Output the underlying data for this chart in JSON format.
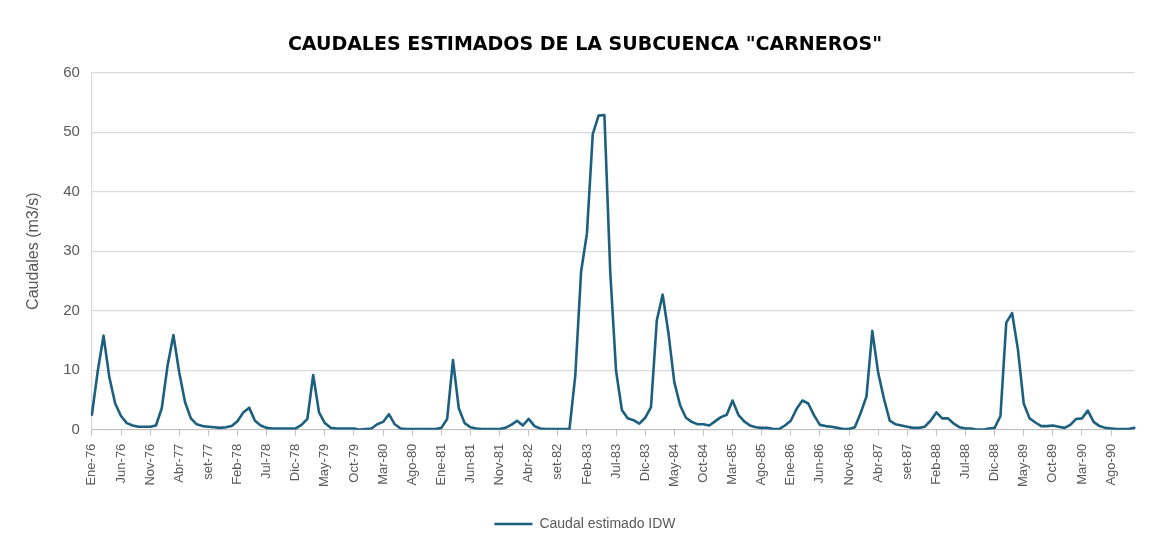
{
  "chart_data": {
    "type": "line",
    "title": "CAUDALES ESTIMADOS DE LA SUBCUENCA \"CARNEROS\"",
    "ylabel": "Caudales (m3/s)",
    "categories": [
      "Ene-76",
      null,
      null,
      null,
      null,
      "Jun-76",
      null,
      null,
      null,
      null,
      "Nov-76",
      null,
      null,
      null,
      null,
      "Abr-77",
      null,
      null,
      null,
      null,
      "set-77",
      null,
      null,
      null,
      null,
      "Feb-78",
      null,
      null,
      null,
      null,
      "Jul-78",
      null,
      null,
      null,
      null,
      "Dic-78",
      null,
      null,
      null,
      null,
      "May-79",
      null,
      null,
      null,
      null,
      "Oct-79",
      null,
      null,
      null,
      null,
      "Mar-80",
      null,
      null,
      null,
      null,
      "Ago-80",
      null,
      null,
      null,
      null,
      "Ene-81",
      null,
      null,
      null,
      null,
      "Jun-81",
      null,
      null,
      null,
      null,
      "Nov-81",
      null,
      null,
      null,
      null,
      "Abr-82",
      null,
      null,
      null,
      null,
      "set-82",
      null,
      null,
      null,
      null,
      "Feb-83",
      null,
      null,
      null,
      null,
      "Jul-83",
      null,
      null,
      null,
      null,
      "Dic-83",
      null,
      null,
      null,
      null,
      "May-84",
      null,
      null,
      null,
      null,
      "Oct-84",
      null,
      null,
      null,
      null,
      "Mar-85",
      null,
      null,
      null,
      null,
      "Ago-85",
      null,
      null,
      null,
      null,
      "Ene-86",
      null,
      null,
      null,
      null,
      "Jun-86",
      null,
      null,
      null,
      null,
      "Nov-86",
      null,
      null,
      null,
      null,
      "Abr-87",
      null,
      null,
      null,
      null,
      "set-87",
      null,
      null,
      null,
      null,
      "Feb-88",
      null,
      null,
      null,
      null,
      "Jul-88",
      null,
      null,
      null,
      null,
      "Dic-88",
      null,
      null,
      null,
      null,
      "May-89",
      null,
      null,
      null,
      null,
      "Oct-89",
      null,
      null,
      null,
      null,
      "Mar-90",
      null,
      null,
      null,
      null,
      "Ago-90",
      null,
      null,
      null,
      null
    ],
    "series": [
      {
        "name": "Caudal estimado IDW",
        "color": "#1c5f7f",
        "values": [
          2.5,
          9.8,
          15.8,
          8.8,
          4.4,
          2.3,
          1.1,
          0.7,
          0.5,
          0.5,
          0.5,
          0.7,
          3.6,
          10.8,
          15.9,
          9.6,
          4.6,
          1.9,
          0.9,
          0.6,
          0.5,
          0.4,
          0.3,
          0.4,
          0.6,
          1.4,
          2.9,
          3.7,
          1.5,
          0.7,
          0.3,
          0.2,
          0.2,
          0.2,
          0.2,
          0.2,
          0.8,
          1.8,
          9.2,
          2.9,
          1.1,
          0.3,
          0.2,
          0.2,
          0.2,
          0.2,
          0,
          0.1,
          0.2,
          0.9,
          1.3,
          2.6,
          0.9,
          0.2,
          0.1,
          0.1,
          0.1,
          0.1,
          0.1,
          0.1,
          0.3,
          1.8,
          11.7,
          3.6,
          1.1,
          0.4,
          0.2,
          0.1,
          0.1,
          0.1,
          0.1,
          0.3,
          0.8,
          1.5,
          0.7,
          1.8,
          0.6,
          0.2,
          0.1,
          0.1,
          0.1,
          0.1,
          0.1,
          9.1,
          26.6,
          33,
          49.7,
          52.8,
          52.9,
          26.6,
          9.9,
          3.3,
          1.9,
          1.6,
          1.0,
          2.0,
          3.8,
          18.4,
          22.7,
          16.2,
          8.0,
          4.1,
          2.0,
          1.3,
          0.9,
          0.9,
          0.7,
          1.4,
          2.1,
          2.5,
          4.9,
          2.5,
          1.4,
          0.7,
          0.4,
          0.3,
          0.3,
          0.1,
          0.1,
          0.7,
          1.5,
          3.5,
          4.9,
          4.4,
          2.4,
          0.8,
          0.6,
          0.5,
          0.3,
          0.1,
          0.1,
          0.4,
          2.8,
          5.6,
          16.6,
          9.6,
          5.2,
          1.5,
          0.9,
          0.7,
          0.5,
          0.3,
          0.3,
          0.5,
          1.5,
          2.9,
          1.9,
          1.9,
          1.0,
          0.4,
          0.2,
          0.2,
          0,
          0,
          0.2,
          0.3,
          2.3,
          18.0,
          19.6,
          13.5,
          4.4,
          1.9,
          1.2,
          0.6,
          0.6,
          0.7,
          0.5,
          0.3,
          0.8,
          1.8,
          1.9,
          3.2,
          1.3,
          0.6,
          0.3,
          0.2,
          0.1,
          0.1,
          0.1,
          0.3
        ]
      }
    ],
    "ylim": [
      0,
      60
    ],
    "yticks": [
      0,
      10,
      20,
      30,
      40,
      50,
      60
    ],
    "grid": "y",
    "legend": "bottom",
    "marker": "none"
  }
}
